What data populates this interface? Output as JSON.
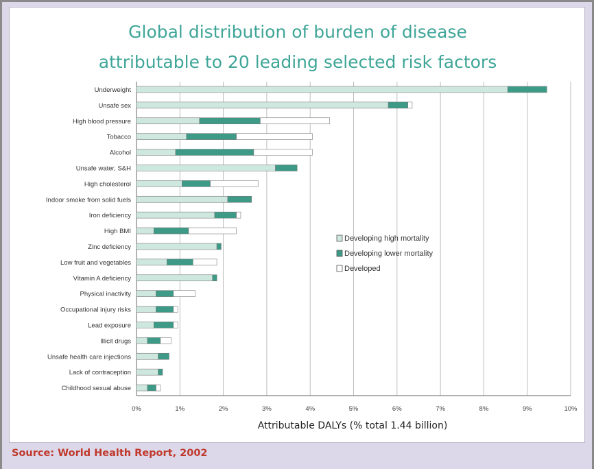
{
  "source": "Source: World Health Report, 2002",
  "colors": {
    "title": "#3ea597",
    "developing_high": "#cfe8df",
    "developing_lower": "#3c9a86",
    "developed": "#ffffff",
    "bar_outline": "#7a7a7a",
    "source": "#c0392b"
  },
  "chart_data": {
    "type": "bar",
    "orientation": "horizontal",
    "stacked": true,
    "title_lines": [
      "Global distribution of burden of disease",
      "attributable to 20 leading selected risk factors"
    ],
    "xlabel": "Attributable DALYs (% total 1.44 billion)",
    "ylabel": "",
    "xlim": [
      0,
      10
    ],
    "xticks": [
      "0%",
      "1%",
      "2%",
      "3%",
      "4%",
      "5%",
      "6%",
      "7%",
      "8%",
      "9%",
      "10%"
    ],
    "grid": true,
    "legend_position": "center-right",
    "categories": [
      "Underweight",
      "Unsafe sex",
      "High blood pressure",
      "Tobacco",
      "Alcohol",
      "Unsafe water, S&H",
      "High cholesterol",
      "Indoor smoke from solid fuels",
      "Iron deficiency",
      "High BMI",
      "Zinc deficiency",
      "Low fruit and vegetables",
      "Vitamin A deficiency",
      "Physical inactivity",
      "Occupational injury risks",
      "Lead exposure",
      "Illicit drugs",
      "Unsafe health care injections",
      "Lack of contraception",
      "Childhood sexual abuse"
    ],
    "series": [
      {
        "name": "Developing high mortality",
        "values": [
          8.55,
          5.8,
          1.45,
          1.15,
          0.9,
          3.2,
          1.05,
          2.1,
          1.8,
          0.4,
          1.85,
          0.7,
          1.75,
          0.45,
          0.45,
          0.4,
          0.25,
          0.5,
          0.5,
          0.25
        ]
      },
      {
        "name": "Developing lower mortality",
        "values": [
          0.9,
          0.45,
          1.4,
          1.15,
          1.8,
          0.5,
          0.65,
          0.55,
          0.5,
          0.8,
          0.1,
          0.6,
          0.1,
          0.4,
          0.4,
          0.45,
          0.3,
          0.25,
          0.1,
          0.2
        ]
      },
      {
        "name": "Developed",
        "values": [
          0.0,
          0.1,
          1.6,
          1.75,
          1.35,
          0.0,
          1.1,
          0.0,
          0.1,
          1.1,
          0.0,
          0.55,
          0.0,
          0.5,
          0.1,
          0.1,
          0.25,
          0.0,
          0.0,
          0.1
        ]
      }
    ]
  }
}
